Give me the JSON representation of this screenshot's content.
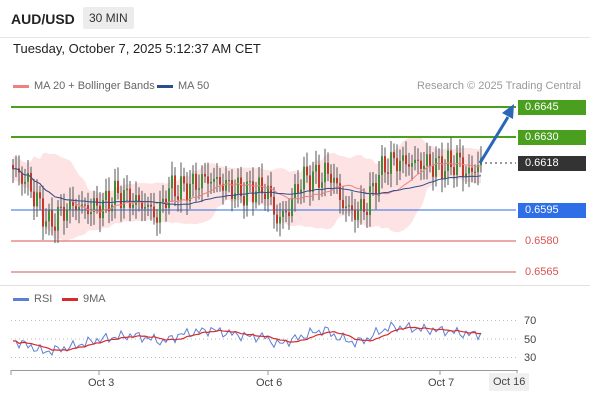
{
  "header": {
    "symbol": "AUD/USD",
    "timeframe": "30 MIN"
  },
  "datetime": "Tuesday, October 7, 2025 5:12:37 AM CET",
  "credit": "Research © 2025 Trading Central",
  "chart_data": {
    "type": "candlestick",
    "legend": [
      {
        "name": "MA 20 + Bollinger Bands",
        "color": "#f08080"
      },
      {
        "name": "MA 50",
        "color": "#2b4f8c"
      }
    ],
    "ylim": [
      0.656,
      0.6655
    ],
    "levels": [
      {
        "value": "0.6645",
        "kind": "resistance",
        "color": "#4aa01e"
      },
      {
        "value": "0.6630",
        "kind": "resistance",
        "color": "#4aa01e"
      },
      {
        "value": "0.6618",
        "kind": "current",
        "color": "#333333"
      },
      {
        "value": "0.6595",
        "kind": "pivot",
        "color": "#2e6ee6"
      },
      {
        "value": "0.6580",
        "kind": "support",
        "color": "#d9534f"
      },
      {
        "value": "0.6565",
        "kind": "support",
        "color": "#d9534f"
      }
    ],
    "forecast_arrow": {
      "from": 0.6618,
      "to": 0.6645,
      "color": "#2a67b8"
    },
    "x_labels": [
      "Oct 3",
      "Oct 6",
      "Oct 7",
      "Oct 16"
    ],
    "anchors": [
      [
        0,
        0.6614
      ],
      [
        5,
        0.6607
      ],
      [
        8,
        0.6598
      ],
      [
        12,
        0.6586
      ],
      [
        16,
        0.6592
      ],
      [
        20,
        0.6596
      ],
      [
        25,
        0.6594
      ],
      [
        30,
        0.6596
      ],
      [
        35,
        0.6602
      ],
      [
        40,
        0.6598
      ],
      [
        45,
        0.6595
      ],
      [
        48,
        0.659
      ],
      [
        52,
        0.6604
      ],
      [
        56,
        0.6604
      ],
      [
        60,
        0.6606
      ],
      [
        64,
        0.6609
      ],
      [
        68,
        0.6608
      ],
      [
        72,
        0.6605
      ],
      [
        76,
        0.6602
      ],
      [
        80,
        0.6604
      ],
      [
        85,
        0.6603
      ],
      [
        88,
        0.6588
      ],
      [
        92,
        0.6594
      ],
      [
        95,
        0.6606
      ],
      [
        98,
        0.661
      ],
      [
        102,
        0.661
      ],
      [
        106,
        0.6612
      ],
      [
        110,
        0.6596
      ],
      [
        114,
        0.6592
      ],
      [
        118,
        0.6596
      ],
      [
        121,
        0.6608
      ],
      [
        124,
        0.6616
      ],
      [
        128,
        0.6618
      ],
      [
        132,
        0.6617
      ],
      [
        136,
        0.6617
      ],
      [
        140,
        0.6616
      ],
      [
        144,
        0.6615
      ],
      [
        148,
        0.6618
      ],
      [
        152,
        0.6611
      ],
      [
        156,
        0.6618
      ]
    ],
    "rsi": {
      "legend": [
        {
          "name": "RSI",
          "color": "#5b7fd6"
        },
        {
          "name": "9MA",
          "color": "#d92a2a"
        }
      ],
      "ticks": [
        "70",
        "50",
        "30"
      ],
      "ylim": [
        20,
        80
      ],
      "anchors": [
        [
          0,
          48
        ],
        [
          6,
          42
        ],
        [
          10,
          36
        ],
        [
          14,
          38
        ],
        [
          20,
          42
        ],
        [
          28,
          49
        ],
        [
          34,
          52
        ],
        [
          40,
          54
        ],
        [
          46,
          50
        ],
        [
          50,
          47
        ],
        [
          56,
          55
        ],
        [
          62,
          58
        ],
        [
          66,
          60
        ],
        [
          72,
          56
        ],
        [
          78,
          53
        ],
        [
          84,
          52
        ],
        [
          88,
          44
        ],
        [
          94,
          50
        ],
        [
          100,
          57
        ],
        [
          104,
          60
        ],
        [
          108,
          52
        ],
        [
          114,
          46
        ],
        [
          118,
          50
        ],
        [
          122,
          58
        ],
        [
          126,
          63
        ],
        [
          132,
          62
        ],
        [
          138,
          60
        ],
        [
          144,
          59
        ],
        [
          148,
          57
        ],
        [
          152,
          55
        ],
        [
          156,
          56
        ]
      ]
    }
  }
}
